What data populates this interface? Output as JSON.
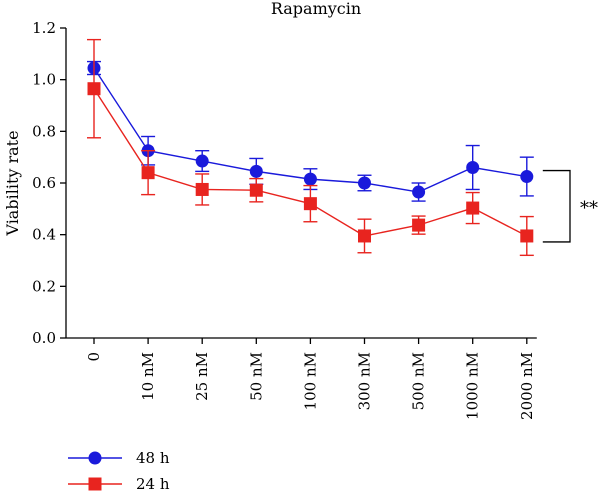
{
  "chart_data": {
    "type": "line",
    "title": "Rapamycin",
    "xlabel": "",
    "ylabel": "Viability rate",
    "categories": [
      "0",
      "10 nM",
      "25 nM",
      "50 nM",
      "100 nM",
      "300 nM",
      "500 nM",
      "1000 nM",
      "2000 nM"
    ],
    "ylim": [
      0,
      1.2
    ],
    "yticks": [
      "0.0",
      "0.2",
      "0.4",
      "0.6",
      "0.8",
      "1.0",
      "1.2"
    ],
    "grid": false,
    "legend_position": "bottom-left",
    "significance_label": "**",
    "series": [
      {
        "name": "48 h",
        "color": "#1a1adb",
        "marker": "circle",
        "values": [
          1.045,
          0.725,
          0.685,
          0.645,
          0.615,
          0.6,
          0.565,
          0.66,
          0.625
        ],
        "errors": [
          0.025,
          0.055,
          0.04,
          0.05,
          0.04,
          0.03,
          0.035,
          0.085,
          0.075
        ]
      },
      {
        "name": "24 h",
        "color": "#e8241f",
        "marker": "square",
        "values": [
          0.965,
          0.64,
          0.575,
          0.572,
          0.52,
          0.395,
          0.437,
          0.503,
          0.395
        ],
        "errors": [
          0.19,
          0.085,
          0.06,
          0.045,
          0.07,
          0.065,
          0.035,
          0.06,
          0.075
        ]
      }
    ]
  }
}
